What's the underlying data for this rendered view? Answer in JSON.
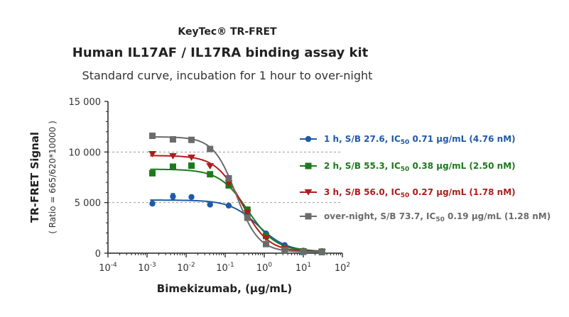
{
  "chart_data": {
    "type": "scatter",
    "brand": "KeyTec® TR-FRET",
    "title": "Human IL17AF / IL17RA binding assay kit",
    "subtitle": "Standard curve,  incubation for 1 hour to over-night",
    "xlabel": "Bimekizumab, (µg/mL)",
    "ylabel": "TR-FRET Signal",
    "ylabel_secondary": "( Ratio = 665/620*10000 )",
    "x_scale": "log",
    "xlim": [
      0.0001,
      100
    ],
    "ylim": [
      0,
      15000
    ],
    "x_ticks": [
      {
        "base": "10",
        "exp": "-4"
      },
      {
        "base": "10",
        "exp": "-3"
      },
      {
        "base": "10",
        "exp": "-2"
      },
      {
        "base": "10",
        "exp": "-1"
      },
      {
        "base": "10",
        "exp": "0"
      },
      {
        "base": "10",
        "exp": "1"
      },
      {
        "base": "10",
        "exp": "2"
      }
    ],
    "y_ticks": [
      "0",
      "5 000",
      "10 000",
      "15 000"
    ],
    "grid": "dashed horizontal at 5 000 and 10 000",
    "legend_position": "right",
    "series": [
      {
        "legend_prefix": "1 h, S/B 27.6, IC",
        "legend_sub": "50",
        "legend_suffix": " 0.71 µg/mL (4.76 nM)",
        "color": "#1f5aa6",
        "marker": "circle",
        "x": [
          0.00137,
          0.0046,
          0.0137,
          0.041,
          0.123,
          0.37,
          1.11,
          3.33,
          10,
          30
        ],
        "y": [
          4900,
          5600,
          5550,
          4800,
          4700,
          3900,
          1950,
          800,
          250,
          200
        ],
        "err": [
          0,
          300,
          150,
          0,
          0,
          0,
          0,
          0,
          0,
          0
        ],
        "fit": {
          "top": 5250,
          "bottom": 150,
          "ic50": 0.71,
          "hill": 1.2
        }
      },
      {
        "legend_prefix": "2 h, S/B 55.3, IC",
        "legend_sub": "50",
        "legend_suffix": " 0.38 µg/mL (2.50 nM)",
        "color": "#1b7a1b",
        "marker": "square",
        "x": [
          0.00137,
          0.0046,
          0.0137,
          0.041,
          0.123,
          0.37,
          1.11,
          3.33,
          10,
          30
        ],
        "y": [
          7900,
          8550,
          8650,
          7800,
          6700,
          4300,
          1700,
          500,
          180,
          150
        ],
        "err": [
          0,
          0,
          0,
          0,
          0,
          0,
          0,
          0,
          0,
          0
        ],
        "fit": {
          "top": 8300,
          "bottom": 150,
          "ic50": 0.38,
          "hill": 1.2
        }
      },
      {
        "legend_prefix": "3 h, S/B 56.0, IC",
        "legend_sub": "50",
        "legend_suffix": " 0.27 µg/mL (1.78 nM)",
        "color": "#b01c1c",
        "marker": "triangle-down",
        "x": [
          0.00137,
          0.0046,
          0.0137,
          0.041,
          0.123,
          0.37,
          1.11,
          3.33,
          10,
          30
        ],
        "y": [
          9800,
          9600,
          9450,
          8600,
          6900,
          4000,
          1500,
          400,
          150,
          120
        ],
        "err": [
          0,
          0,
          0,
          0,
          0,
          0,
          0,
          0,
          0,
          0
        ],
        "fit": {
          "top": 9650,
          "bottom": 130,
          "ic50": 0.27,
          "hill": 1.3
        }
      },
      {
        "legend_prefix": "over-night, S/B 73.7, IC",
        "legend_sub": "50",
        "legend_suffix": " 0.19 µg/mL (1.28 nM)",
        "color": "#6b6b6b",
        "marker": "square",
        "x": [
          0.00137,
          0.0046,
          0.0137,
          0.041,
          0.123,
          0.37,
          1.11,
          3.33,
          10,
          30
        ],
        "y": [
          11600,
          11250,
          11200,
          10300,
          7400,
          3500,
          900,
          300,
          130,
          100
        ],
        "err": [
          0,
          0,
          0,
          0,
          0,
          0,
          0,
          0,
          0,
          0
        ],
        "fit": {
          "top": 11500,
          "bottom": 120,
          "ic50": 0.19,
          "hill": 1.5
        }
      }
    ]
  }
}
